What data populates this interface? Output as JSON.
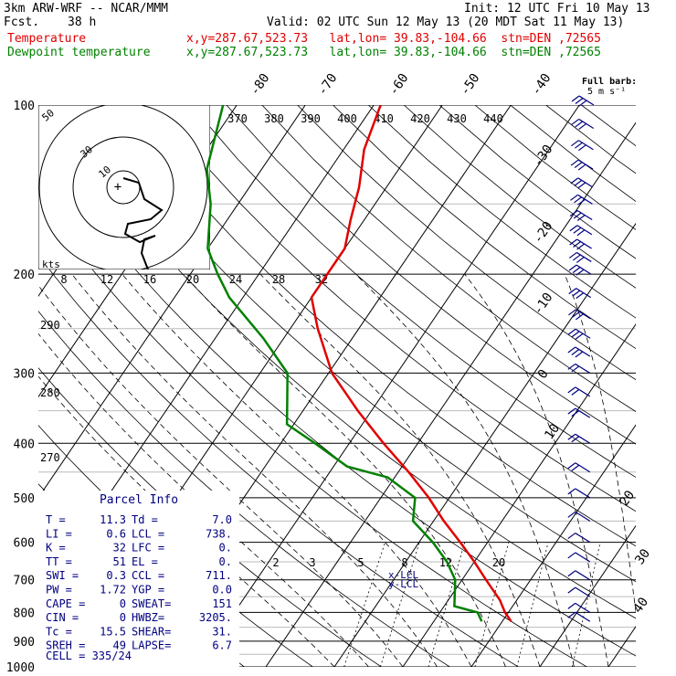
{
  "header": {
    "model": "3km ARW-WRF -- NCAR/MMM",
    "init": "Init: 12 UTC Fri 10 May 13",
    "fcst": "Fcst.",
    "fcst_hours": "38 h",
    "valid": "Valid: 02 UTC Sun 12 May 13 (20 MDT Sat 11 May 13)",
    "temp_label": "Temperature",
    "temp_info": "x,y=287.67,523.73   lat,lon= 39.83,-104.66  stn=DEN ,72565",
    "dew_label": "Dewpoint temperature",
    "dew_info": "x,y=287.67,523.73   lat,lon= 39.83,-104.66  stn=DEN ,72565"
  },
  "colors": {
    "temperature": "#e00000",
    "dewpoint": "#008000",
    "barbs": "#000080",
    "grid": "#000000"
  },
  "barb_legend": {
    "line1": "Full barb:",
    "line2": "5 m s⁻¹"
  },
  "chart_data": {
    "type": "line",
    "subtype": "skew-T log-P diagram",
    "pressure_levels": [
      "100",
      "200",
      "300",
      "400",
      "500",
      "600",
      "700",
      "800",
      "900",
      "1000"
    ],
    "isotherm_labels": [
      "-80",
      "-70",
      "-60",
      "-50",
      "-40",
      "-30",
      "-20",
      "-10",
      "0",
      "10",
      "20",
      "30",
      "40"
    ],
    "theta_labels": [
      "370",
      "380",
      "390",
      "400",
      "410",
      "420",
      "430",
      "440"
    ],
    "mixing_ratio_labels": [
      "2",
      "3",
      "5",
      "8",
      "12",
      "20"
    ],
    "hodograph_speed_axis": [
      "8",
      "12",
      "16",
      "20",
      "24",
      "28",
      "32"
    ],
    "hodograph_ring_labels": [
      "10",
      "30",
      "50"
    ],
    "hodograph_units": "kts",
    "left_labels": [
      "290",
      "280",
      "270"
    ],
    "lcl_label": "x-LCL",
    "cl_label": "y-LCL",
    "temperature": [
      {
        "p": 830,
        "t": 11.3
      },
      {
        "p": 800,
        "t": 9.5
      },
      {
        "p": 760,
        "t": 7.5
      },
      {
        "p": 700,
        "t": 3.5
      },
      {
        "p": 650,
        "t": 0
      },
      {
        "p": 600,
        "t": -4
      },
      {
        "p": 550,
        "t": -8.5
      },
      {
        "p": 500,
        "t": -13
      },
      {
        "p": 450,
        "t": -18.5
      },
      {
        "p": 400,
        "t": -25
      },
      {
        "p": 350,
        "t": -32
      },
      {
        "p": 300,
        "t": -39.5
      },
      {
        "p": 250,
        "t": -46
      },
      {
        "p": 220,
        "t": -50
      },
      {
        "p": 200,
        "t": -50
      },
      {
        "p": 180,
        "t": -50
      },
      {
        "p": 160,
        "t": -52
      },
      {
        "p": 140,
        "t": -54
      },
      {
        "p": 120,
        "t": -57
      },
      {
        "p": 100,
        "t": -59
      }
    ],
    "dewpoint": [
      {
        "p": 830,
        "t": 7.0
      },
      {
        "p": 800,
        "t": 5.5
      },
      {
        "p": 780,
        "t": 1.5
      },
      {
        "p": 700,
        "t": -1
      },
      {
        "p": 650,
        "t": -4
      },
      {
        "p": 600,
        "t": -8
      },
      {
        "p": 550,
        "t": -13
      },
      {
        "p": 500,
        "t": -15
      },
      {
        "p": 460,
        "t": -21
      },
      {
        "p": 440,
        "t": -28
      },
      {
        "p": 400,
        "t": -35
      },
      {
        "p": 370,
        "t": -41
      },
      {
        "p": 340,
        "t": -43
      },
      {
        "p": 300,
        "t": -46
      },
      {
        "p": 260,
        "t": -53
      },
      {
        "p": 220,
        "t": -62
      },
      {
        "p": 200,
        "t": -66
      },
      {
        "p": 180,
        "t": -70
      },
      {
        "p": 150,
        "t": -74
      },
      {
        "p": 130,
        "t": -78
      },
      {
        "p": 100,
        "t": -82
      }
    ],
    "wind_barb_levels": [
      100,
      110,
      120,
      130,
      140,
      150,
      160,
      170,
      180,
      190,
      200,
      220,
      240,
      260,
      280,
      300,
      330,
      360,
      400,
      450,
      500,
      550,
      600,
      650,
      700,
      750,
      800,
      830
    ]
  },
  "parcel_info": {
    "title": "Parcel Info",
    "rows": [
      [
        "T  =",
        "11.3",
        "Td =",
        "7.0"
      ],
      [
        "LI =",
        "0.6",
        "LCL =",
        "738."
      ],
      [
        "K  =",
        "32",
        "LFC =",
        "0."
      ],
      [
        "TT =",
        "51",
        "EL  =",
        "0."
      ],
      [
        "SWI =",
        "0.3",
        "CCL =",
        "711."
      ],
      [
        "PW =",
        "1.72",
        "YGP =",
        "0.0"
      ],
      [
        "CAPE =",
        "0",
        "SWEAT=",
        "151"
      ],
      [
        "CIN =",
        "0",
        "HWBZ=",
        "3205."
      ],
      [
        "Tc =",
        "15.5",
        "SHEAR=",
        "31."
      ],
      [
        "SREH =",
        "49",
        "LAPSE=",
        "6.7"
      ]
    ],
    "cell": "CELL = 335/24"
  }
}
